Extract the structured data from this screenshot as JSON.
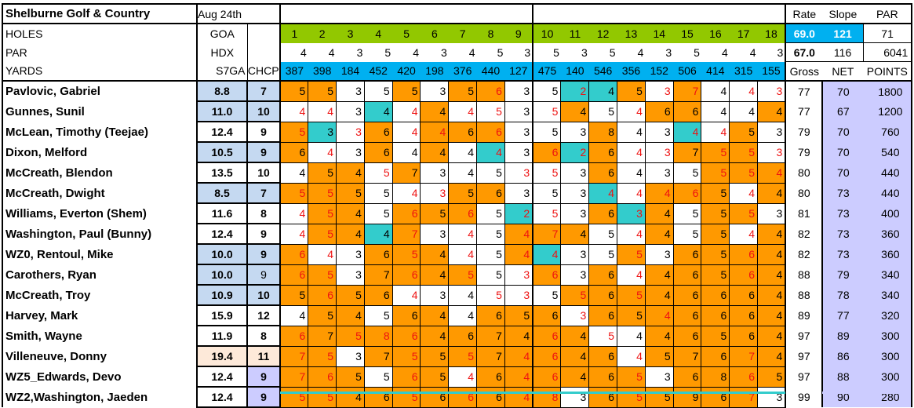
{
  "header": {
    "title": "Shelburne Golf & Country",
    "date": "Aug 24th",
    "rate_label": "Rate",
    "slope_label": "Slope",
    "par_label": "PAR",
    "holes_label": "HOLES",
    "goa_label": "GOA",
    "par_row_label": "PAR",
    "hdx_label": "HDX",
    "yards_label": "YARDS",
    "s7ga_label": "S7GA",
    "chcp_label": "CHCP",
    "rate1": "69.0",
    "slope1": "121",
    "par_total": "71",
    "rate2": "67.0",
    "slope2": "116",
    "yards_total": "6041",
    "gross_label": "Gross",
    "net_label": "NET",
    "points_label": "POINTS"
  },
  "holes": [
    "1",
    "2",
    "3",
    "4",
    "5",
    "6",
    "7",
    "8",
    "9",
    "10",
    "11",
    "12",
    "13",
    "14",
    "15",
    "16",
    "17",
    "18"
  ],
  "pars": [
    "4",
    "4",
    "3",
    "5",
    "4",
    "3",
    "4",
    "5",
    "3",
    "5",
    "3",
    "5",
    "4",
    "3",
    "5",
    "4",
    "4",
    "3"
  ],
  "yards": [
    "387",
    "398",
    "184",
    "452",
    "420",
    "198",
    "376",
    "440",
    "127",
    "475",
    "140",
    "546",
    "356",
    "152",
    "506",
    "414",
    "315",
    "155"
  ],
  "colors": {
    "birdie_bg": "#33CCCC",
    "over_par_bg": "#FF9900",
    "holes_bg": "#92C800",
    "yards_bg": "#00B0F0",
    "red_text": "#EE1111",
    "net_points_bg": "#CCCCFF"
  },
  "cell_code_legend": {
    "o": "orange background",
    "t": "teal background",
    "r": "red text"
  },
  "players": [
    {
      "name": "Pavlovic, Gabriel",
      "s7ga": "8.8",
      "chcp": "7",
      "hbg": "bl",
      "cbg": "bl",
      "scores": [
        "5o",
        "5o",
        "3",
        "5",
        "5o",
        "3",
        "5o",
        "6or",
        "3",
        "5",
        "2tr",
        "4t",
        "5o",
        "3r",
        "7or",
        "4",
        "4r",
        "3r"
      ],
      "gross": "77",
      "net": "70",
      "points": "1800"
    },
    {
      "name": "Gunnes, Sunil",
      "s7ga": "11.0",
      "chcp": "10",
      "hbg": "bl",
      "cbg": "bl",
      "scores": [
        "4r",
        "4r",
        "3",
        "4t",
        "4r",
        "4o",
        "4r",
        "5r",
        "3",
        "5r",
        "4o",
        "5",
        "4r",
        "6o",
        "6o",
        "4",
        "4",
        "4o"
      ],
      "gross": "77",
      "net": "67",
      "points": "1200"
    },
    {
      "name": "McLean, Timothy (Teejae)",
      "s7ga": "12.4",
      "chcp": "9",
      "hbg": "wh",
      "cbg": "wh",
      "scores": [
        "5or",
        "3t",
        "3r",
        "6o",
        "4r",
        "4or",
        "6o",
        "6or",
        "3",
        "5",
        "3",
        "8o",
        "4",
        "3",
        "4tr",
        "4r",
        "5o",
        "3"
      ],
      "gross": "79",
      "net": "70",
      "points": "760"
    },
    {
      "name": "Dixon, Melford",
      "s7ga": "10.5",
      "chcp": "9",
      "hbg": "bl",
      "cbg": "bl",
      "scores": [
        "6o",
        "4r",
        "3",
        "6o",
        "4",
        "4o",
        "4",
        "4tr",
        "3",
        "6or",
        "2tr",
        "6o",
        "4r",
        "3r",
        "7o",
        "5or",
        "5or",
        "3r"
      ],
      "gross": "79",
      "net": "70",
      "points": "540"
    },
    {
      "name": "McCreath, Blendon",
      "s7ga": "13.5",
      "chcp": "10",
      "hbg": "wh",
      "cbg": "wh",
      "scores": [
        "4",
        "5o",
        "4o",
        "5r",
        "7o",
        "3",
        "4",
        "5",
        "3r",
        "5r",
        "3",
        "6o",
        "4",
        "3",
        "5",
        "5or",
        "5or",
        "4or"
      ],
      "gross": "80",
      "net": "70",
      "points": "440"
    },
    {
      "name": "McCreath, Dwight",
      "s7ga": "8.5",
      "chcp": "7",
      "hbg": "bl",
      "cbg": "bl",
      "scores": [
        "5or",
        "5or",
        "5o",
        "5",
        "4r",
        "3r",
        "5o",
        "6o",
        "3",
        "5",
        "3",
        "4tr",
        "4r",
        "4or",
        "6or",
        "5o",
        "4r",
        "4o"
      ],
      "gross": "80",
      "net": "73",
      "points": "440"
    },
    {
      "name": "Williams, Everton (Shem)",
      "s7ga": "11.6",
      "chcp": "8",
      "hbg": "wh",
      "cbg": "wh",
      "scores": [
        "4r",
        "5or",
        "4o",
        "5",
        "6or",
        "5o",
        "6or",
        "5",
        "2tr",
        "5r",
        "3",
        "6o",
        "3tr",
        "4o",
        "5",
        "5o",
        "5or",
        "3"
      ],
      "gross": "81",
      "net": "73",
      "points": "400"
    },
    {
      "name": "Washington, Paul (Bunny)",
      "s7ga": "12.4",
      "chcp": "9",
      "hbg": "wh",
      "cbg": "wh",
      "scores": [
        "4r",
        "5or",
        "4o",
        "4t",
        "7or",
        "3",
        "4r",
        "5",
        "4or",
        "7or",
        "4o",
        "5",
        "4r",
        "4o",
        "5",
        "5o",
        "4r",
        "4o"
      ],
      "gross": "82",
      "net": "73",
      "points": "360"
    },
    {
      "name": "WZ0, Rentoul, Mike",
      "s7ga": "10.0",
      "chcp": "9",
      "hbg": "bl",
      "cbg": "bl",
      "scores": [
        "6or",
        "4r",
        "3",
        "6o",
        "5or",
        "4o",
        "4r",
        "5",
        "4or",
        "4tr",
        "3",
        "5",
        "5or",
        "3",
        "6o",
        "5o",
        "6or",
        "4o"
      ],
      "gross": "82",
      "net": "73",
      "points": "360"
    },
    {
      "name": "Carothers, Ryan",
      "s7ga": "10.0",
      "chcp": "9",
      "hbg": "bl",
      "cbg": "bl",
      "scores": [
        "6or",
        "5or",
        "3",
        "7o",
        "6or",
        "4o",
        "5or",
        "5",
        "3r",
        "6or",
        "3",
        "6o",
        "4r",
        "4o",
        "6o",
        "5o",
        "6or",
        "4o"
      ],
      "gross": "88",
      "net": "79",
      "points": "340"
    },
    {
      "name": "McCreath, Troy",
      "s7ga": "10.9",
      "chcp": "10",
      "hbg": "bl",
      "cbg": "bl",
      "scores": [
        "5o",
        "6or",
        "5o",
        "6o",
        "4r",
        "3",
        "4",
        "5r",
        "3r",
        "5",
        "5or",
        "6o",
        "5or",
        "4o",
        "6o",
        "6o",
        "6o",
        "4o"
      ],
      "gross": "88",
      "net": "78",
      "points": "340"
    },
    {
      "name": "Harvey, Mark",
      "s7ga": "15.9",
      "chcp": "12",
      "hbg": "wh",
      "cbg": "wh",
      "scores": [
        "4",
        "5o",
        "4o",
        "5",
        "6o",
        "4o",
        "4",
        "6o",
        "5o",
        "6o",
        "3r",
        "6o",
        "5o",
        "4or",
        "6o",
        "6o",
        "6o",
        "4o"
      ],
      "gross": "89",
      "net": "77",
      "points": "320"
    },
    {
      "name": "Smith, Wayne",
      "s7ga": "11.9",
      "chcp": "8",
      "hbg": "wh",
      "cbg": "wh",
      "scores": [
        "6or",
        "7o",
        "5or",
        "8or",
        "6or",
        "4o",
        "6o",
        "7o",
        "4o",
        "6or",
        "4o",
        "5r",
        "4",
        "4o",
        "6o",
        "5o",
        "6o",
        "4o"
      ],
      "gross": "97",
      "net": "89",
      "points": "300"
    },
    {
      "name": "Villeneuve, Donny",
      "s7ga": "19.4",
      "chcp": "11",
      "hbg": "pe",
      "cbg": "pe",
      "scores": [
        "7or",
        "5or",
        "3",
        "7o",
        "5or",
        "5o",
        "5or",
        "7o",
        "4or",
        "6or",
        "4o",
        "6o",
        "4r",
        "5o",
        "7o",
        "6o",
        "7or",
        "4o"
      ],
      "gross": "97",
      "net": "86",
      "points": "300"
    },
    {
      "name": "WZ5_Edwards, Devo",
      "s7ga": "12.4",
      "chcp": "9",
      "hbg": "wh",
      "cbg": "la",
      "scores": [
        "7or",
        "6or",
        "5o",
        "5",
        "6or",
        "5o",
        "4r",
        "6o",
        "4or",
        "6or",
        "4o",
        "6o",
        "5or",
        "3",
        "6o",
        "8o",
        "6or",
        "5o"
      ],
      "gross": "97",
      "net": "88",
      "points": "300"
    },
    {
      "name": "WZ2,Washington, Jaeden",
      "s7ga": "12.4",
      "chcp": "9",
      "hbg": "wh",
      "cbg": "la",
      "scores": [
        "5or",
        "5or",
        "4o",
        "6o",
        "5or",
        "6o",
        "6or",
        "6o",
        "4or",
        "8or",
        "3",
        "6o",
        "5or",
        "5o",
        "9o",
        "6o",
        "7or",
        "3"
      ],
      "gross": "99",
      "net": "90",
      "points": "280"
    }
  ]
}
